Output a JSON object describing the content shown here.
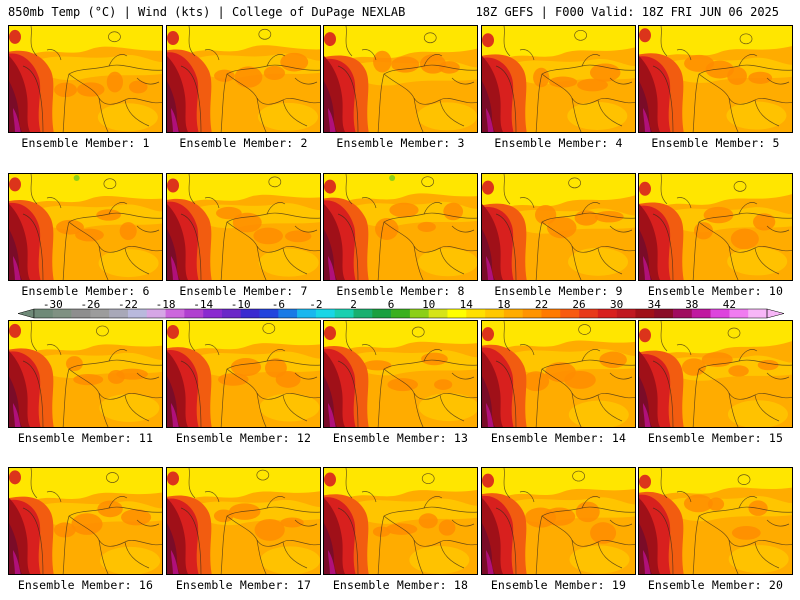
{
  "header": {
    "left_title": "850mb Temp (°C) | Wind (kts) | College of DuPage NEXLAB",
    "right_title": "18Z GEFS | F000 Valid: 18Z FRI JUN 06 2025"
  },
  "panels": [
    {
      "label": "Ensemble Member: 1"
    },
    {
      "label": "Ensemble Member: 2"
    },
    {
      "label": "Ensemble Member: 3"
    },
    {
      "label": "Ensemble Member: 4"
    },
    {
      "label": "Ensemble Member: 5"
    },
    {
      "label": "Ensemble Member: 6"
    },
    {
      "label": "Ensemble Member: 7"
    },
    {
      "label": "Ensemble Member: 8"
    },
    {
      "label": "Ensemble Member: 9"
    },
    {
      "label": "Ensemble Member: 10"
    },
    {
      "label": "Ensemble Member: 11"
    },
    {
      "label": "Ensemble Member: 12"
    },
    {
      "label": "Ensemble Member: 13"
    },
    {
      "label": "Ensemble Member: 14"
    },
    {
      "label": "Ensemble Member: 15"
    },
    {
      "label": "Ensemble Member: 16"
    },
    {
      "label": "Ensemble Member: 17"
    },
    {
      "label": "Ensemble Member: 18"
    },
    {
      "label": "Ensemble Member: 19"
    },
    {
      "label": "Ensemble Member: 20"
    }
  ],
  "colorbar": {
    "tick_labels": [
      "-30",
      "-26",
      "-22",
      "-18",
      "-14",
      "-10",
      "-6",
      "-2",
      "2",
      "6",
      "10",
      "14",
      "18",
      "22",
      "26",
      "30",
      "34",
      "38",
      "42"
    ],
    "colors": [
      "#6f8a78",
      "#7f9182",
      "#8e8e8e",
      "#9c9c9c",
      "#a8a8b8",
      "#b9b9dd",
      "#d6a6e6",
      "#cc66dd",
      "#b040d0",
      "#8a2ad0",
      "#6a28c8",
      "#3a2ad0",
      "#2244dd",
      "#1a7ae6",
      "#19b7ee",
      "#19d6e6",
      "#19d0b0",
      "#19b070",
      "#1aa040",
      "#3ab020",
      "#8ccf18",
      "#d6e418",
      "#ffff00",
      "#ffe000",
      "#ffc800",
      "#ffac00",
      "#ff9400",
      "#ff7a00",
      "#f85a10",
      "#e83a1a",
      "#d8201e",
      "#c01820",
      "#a01018",
      "#8a0c28",
      "#a00c60",
      "#c018a0",
      "#dd44dd",
      "#f07cf0",
      "#f7b6f7"
    ]
  },
  "map_colors": {
    "cool_yellow": "#ffe600",
    "yellow_orange": "#ffc800",
    "orange": "#ffac00",
    "deep_orange": "#ff8c00",
    "red_orange": "#f25c10",
    "red": "#d8201e",
    "dark_red": "#a01018",
    "maroon": "#7a0c28",
    "magenta": "#b0107a",
    "green": "#8ccf18"
  }
}
